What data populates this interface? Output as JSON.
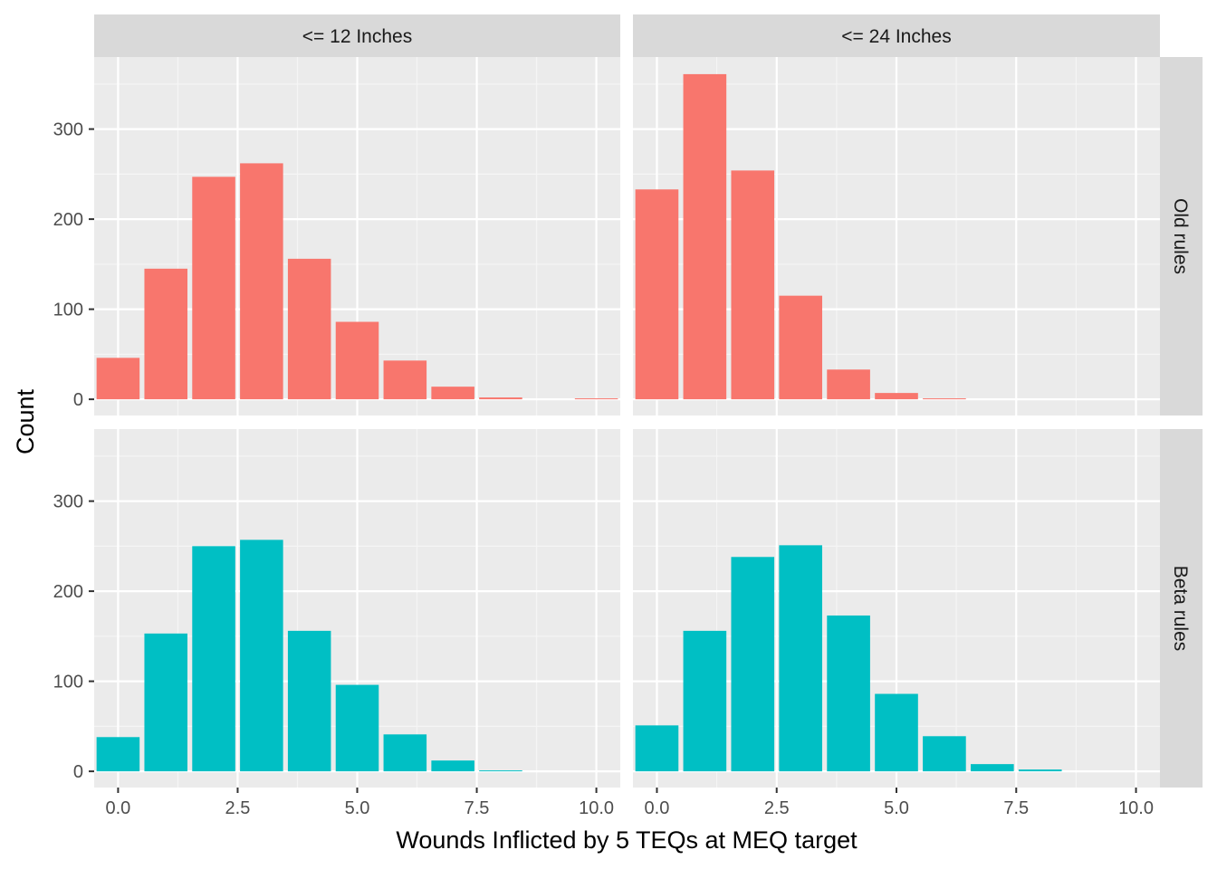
{
  "colors": {
    "panel_bg": "#EBEBEB",
    "strip_bg": "#D9D9D9",
    "grid_major": "#FFFFFF",
    "grid_minor": "#F5F5F5",
    "tick": "#333333"
  },
  "chart_data": {
    "type": "bar",
    "facet_layout": "grid",
    "xlabel": "Wounds Inflicted by 5 TEQs at MEQ target",
    "ylabel": "Count",
    "col_strips": [
      "<= 12 Inches",
      "<= 24 Inches"
    ],
    "row_strips": [
      "Old rules",
      "Beta rules"
    ],
    "x": [
      0,
      1,
      2,
      3,
      4,
      5,
      6,
      7,
      8,
      9,
      10
    ],
    "xlim": [
      -0.5,
      10.5
    ],
    "ylim": [
      -18,
      380
    ],
    "x_ticks": [
      0,
      2.5,
      5,
      7.5,
      10
    ],
    "x_tick_labels": [
      "0.0",
      "2.5",
      "5.0",
      "7.5",
      "10.0"
    ],
    "y_ticks": [
      0,
      100,
      200,
      300
    ],
    "y_tick_labels": [
      "0",
      "100",
      "200",
      "300"
    ],
    "grid": true,
    "legend": "none",
    "panels": [
      {
        "row": 0,
        "col": 0,
        "color": "#F8766D",
        "values": [
          46,
          145,
          247,
          262,
          156,
          86,
          43,
          14,
          2,
          0,
          1
        ]
      },
      {
        "row": 0,
        "col": 1,
        "color": "#F8766D",
        "values": [
          233,
          361,
          254,
          115,
          33,
          7,
          1,
          0,
          0,
          0,
          0
        ]
      },
      {
        "row": 1,
        "col": 0,
        "color": "#00BFC4",
        "values": [
          38,
          153,
          250,
          257,
          156,
          96,
          41,
          12,
          1,
          0,
          0
        ]
      },
      {
        "row": 1,
        "col": 1,
        "color": "#00BFC4",
        "values": [
          51,
          156,
          238,
          251,
          173,
          86,
          39,
          8,
          2,
          0,
          0
        ]
      }
    ]
  }
}
